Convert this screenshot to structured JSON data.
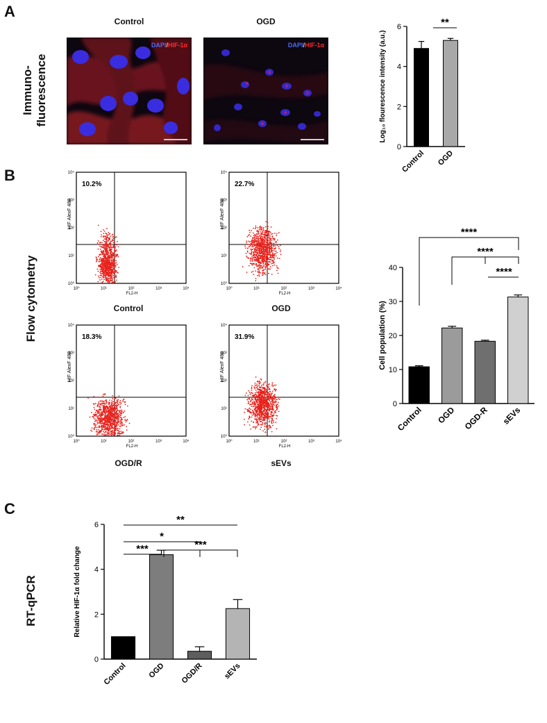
{
  "panels": {
    "a": {
      "letter": "A",
      "row_label": "Immuno-\nfluorescence",
      "images": [
        {
          "title": "Control",
          "legend_dapi": "DAPI",
          "legend_sep": "/",
          "legend_target": "HIF-1α"
        },
        {
          "title": "OGD",
          "legend_dapi": "DAPI",
          "legend_sep": "/",
          "legend_target": "HIF-1α"
        }
      ]
    },
    "b": {
      "letter": "B",
      "row_label": "Flow cytometry",
      "plots": [
        {
          "title": "Control",
          "percent": "10.2%",
          "ylabel": "HIF AlexF 488",
          "xlabel": "FL2-H"
        },
        {
          "title": "OGD",
          "percent": "22.7%",
          "ylabel": "HIF AlexF 488",
          "xlabel": "FL2-H"
        },
        {
          "title": "OGD/R",
          "percent": "18.3%",
          "ylabel": "HIF AlexF 488",
          "xlabel": "FL2-H"
        },
        {
          "title": "sEVs",
          "percent": "31.9%",
          "ylabel": "HIF AlexF 488",
          "xlabel": "FL2-H"
        }
      ],
      "tick_labels": [
        "10⁰",
        "10¹",
        "10²",
        "10³",
        "10⁴"
      ]
    },
    "c": {
      "letter": "C",
      "row_label": "RT-qPCR"
    }
  },
  "chart_data": [
    {
      "type": "bar",
      "panel": "A",
      "categories": [
        "Control",
        "OGD"
      ],
      "values": [
        4.9,
        5.3
      ],
      "errors": [
        0.35,
        0.1
      ],
      "colors": [
        "#000000",
        "#a8a8a8"
      ],
      "ylabel": "Log₁₀ flourescence intensity (a.u.)",
      "ylim": [
        0,
        6
      ],
      "yticks": [
        0,
        2,
        4,
        6
      ],
      "significance": [
        {
          "from": 0,
          "to": 1,
          "label": "**"
        }
      ]
    },
    {
      "type": "bar",
      "panel": "B",
      "categories": [
        "Control",
        "OGD",
        "OGD-R",
        "sEVs"
      ],
      "values": [
        10.8,
        22.2,
        18.3,
        31.3
      ],
      "errors": [
        0.3,
        0.5,
        0.3,
        0.6
      ],
      "colors": [
        "#000000",
        "#9b9b9b",
        "#6f6f6f",
        "#d0d0d0"
      ],
      "ylabel": "Cell population (%)",
      "ylim": [
        0,
        40
      ],
      "yticks": [
        0,
        10,
        20,
        30,
        40
      ],
      "significance": [
        {
          "from": 0,
          "to": 3,
          "label": "****"
        },
        {
          "from": 1,
          "to": 3,
          "label": "****"
        },
        {
          "from": 2,
          "to": 3,
          "label": "****"
        }
      ]
    },
    {
      "type": "bar",
      "panel": "C",
      "categories": [
        "Control",
        "OGD",
        "OGD/R",
        "sEVs"
      ],
      "values": [
        1.0,
        4.65,
        0.35,
        2.25
      ],
      "errors": [
        0.0,
        0.2,
        0.2,
        0.4
      ],
      "colors": [
        "#000000",
        "#7d7d7d",
        "#5e5e5e",
        "#b4b4b4"
      ],
      "ylabel": "Relative HIF-1α fold change",
      "ylim": [
        0,
        6
      ],
      "yticks": [
        0,
        2,
        4,
        6
      ],
      "significance": [
        {
          "from": 0,
          "to": 3,
          "label": "**"
        },
        {
          "from": 0,
          "to": 2,
          "label": "*"
        },
        {
          "from": 0,
          "to": 1,
          "label": "***"
        },
        {
          "from": 1,
          "to": 3,
          "label": "***"
        }
      ]
    }
  ]
}
